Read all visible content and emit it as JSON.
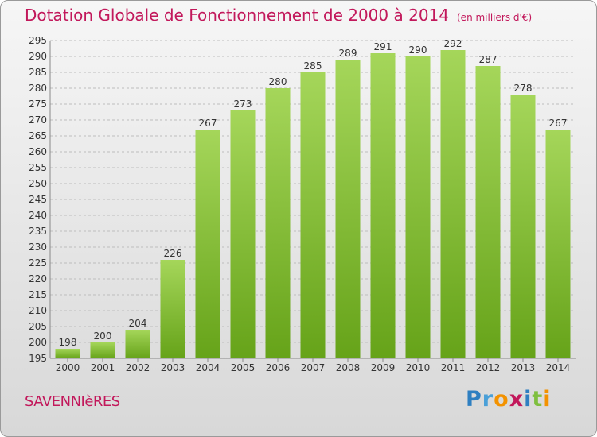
{
  "title": "Dotation Globale de Fonctionnement de 2000 à 2014",
  "unit": "(en milliers d'€)",
  "commune": "SAVENNIèRES",
  "logo": {
    "letters": [
      "P",
      "r",
      "o",
      "x",
      "i",
      "t",
      "i"
    ],
    "colors": [
      "#2e7fc1",
      "#4aa0d8",
      "#f39200",
      "#c2185b",
      "#2e7fc1",
      "#7fbf3f",
      "#f39200"
    ]
  },
  "colors": {
    "bar_top": "#a5d65a",
    "bar_bottom": "#66a319",
    "title": "#c2185b",
    "grid": "#bdbdbd",
    "text": "#333333"
  },
  "chart_data": {
    "type": "bar",
    "categories": [
      "2000",
      "2001",
      "2002",
      "2003",
      "2004",
      "2005",
      "2006",
      "2007",
      "2008",
      "2009",
      "2010",
      "2011",
      "2012",
      "2013",
      "2014"
    ],
    "values": [
      198,
      200,
      204,
      226,
      267,
      273,
      280,
      285,
      289,
      291,
      290,
      292,
      287,
      278,
      267
    ],
    "ylim": [
      195,
      295
    ],
    "yticks": [
      195,
      200,
      205,
      210,
      215,
      220,
      225,
      230,
      235,
      240,
      245,
      250,
      255,
      260,
      265,
      270,
      275,
      280,
      285,
      290,
      295
    ],
    "grid": true
  }
}
